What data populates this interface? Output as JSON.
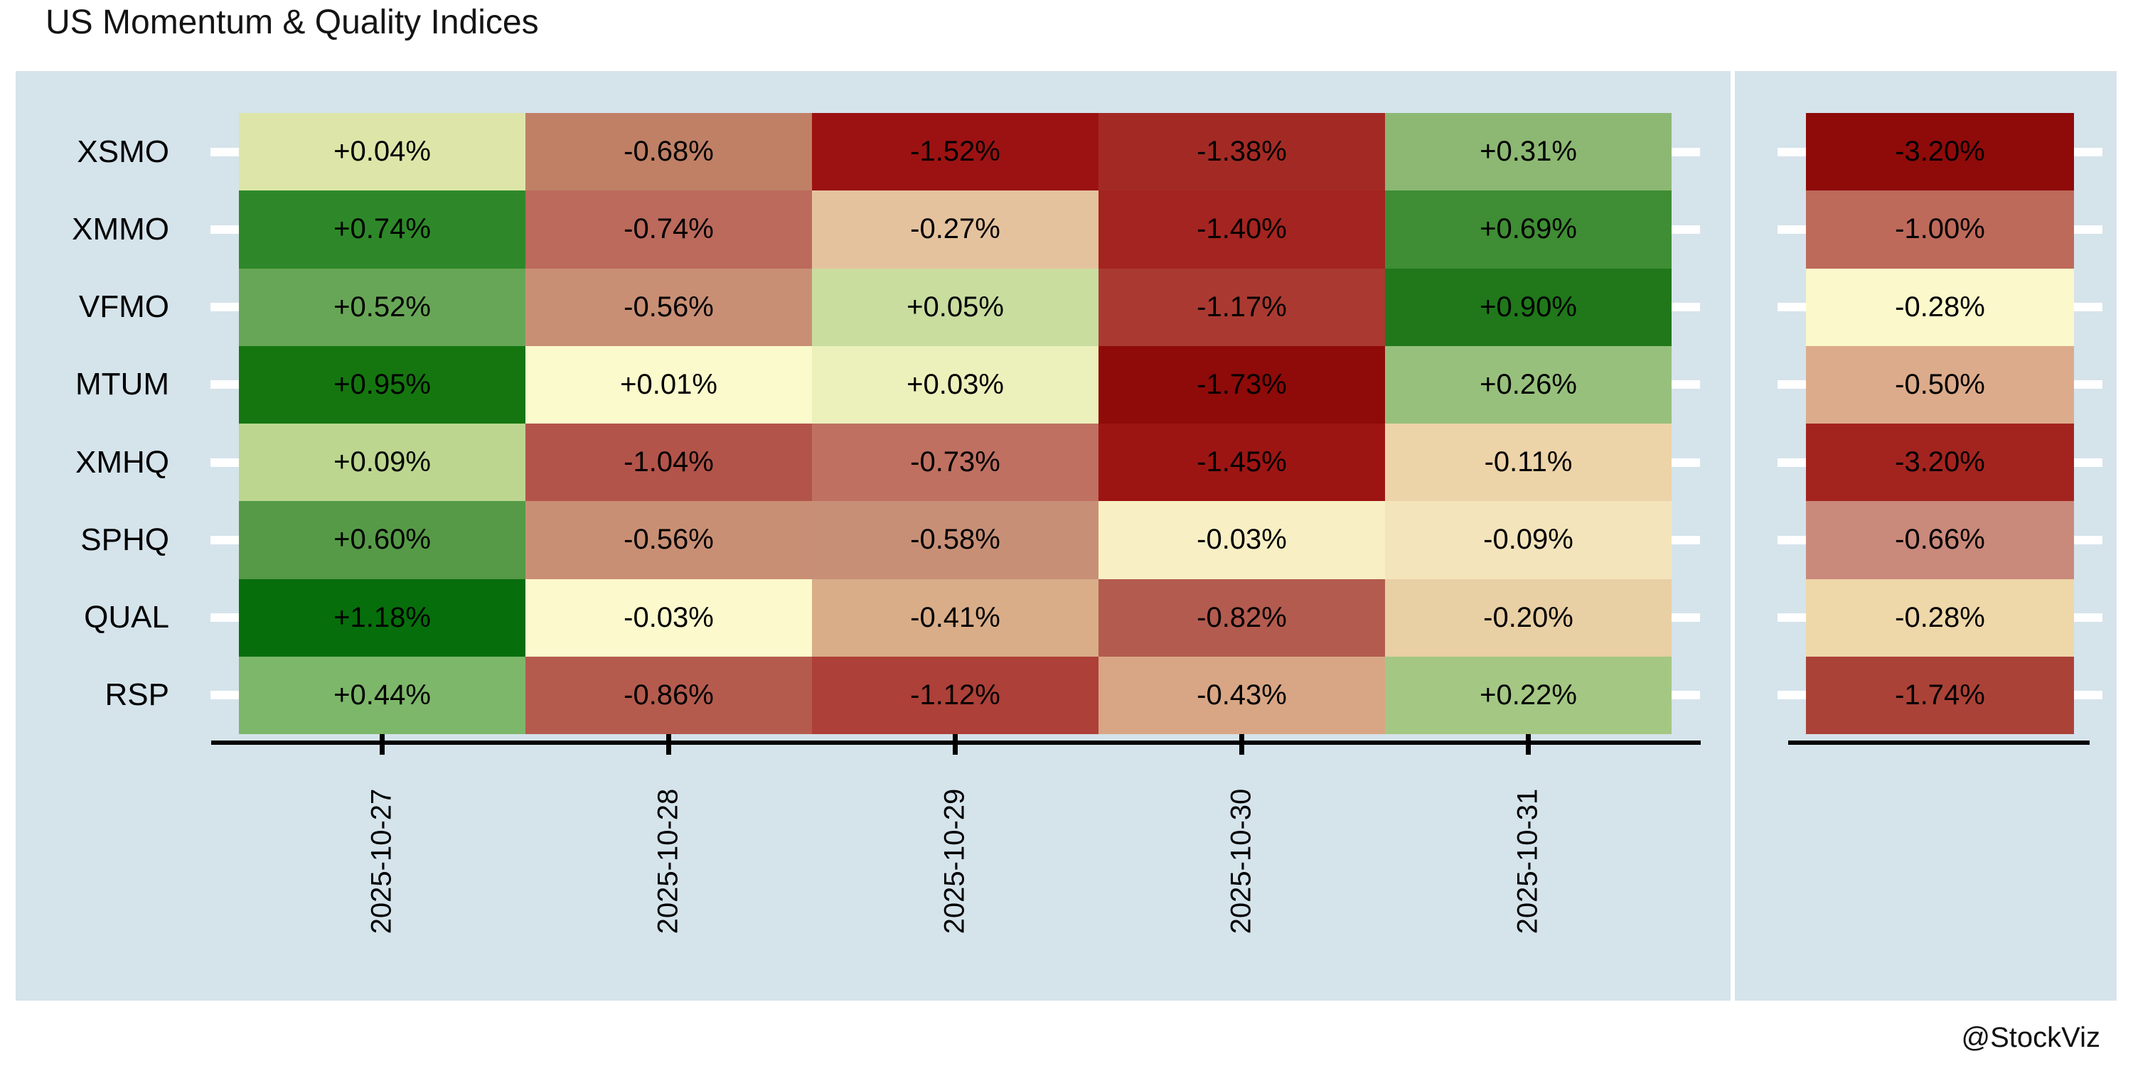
{
  "title": "US Momentum & Quality Indices",
  "attribution": "@StockViz",
  "chart_data": {
    "type": "heatmap",
    "colormap": "RdYlGn",
    "plot_background": "#d5e3eb",
    "rows": [
      "XSMO",
      "XMMO",
      "VFMO",
      "MTUM",
      "XMHQ",
      "SPHQ",
      "QUAL",
      "RSP"
    ],
    "columns": [
      "2025-10-27",
      "2025-10-28",
      "2025-10-29",
      "2025-10-30",
      "2025-10-31"
    ],
    "daily_values_pct": [
      [
        0.04,
        -0.68,
        -1.52,
        -1.38,
        0.31
      ],
      [
        0.74,
        -0.74,
        -0.27,
        -1.4,
        0.69
      ],
      [
        0.52,
        -0.56,
        0.05,
        -1.17,
        0.9
      ],
      [
        0.95,
        0.01,
        0.03,
        -1.73,
        0.26
      ],
      [
        0.09,
        -1.04,
        -0.73,
        -1.45,
        -0.11
      ],
      [
        0.6,
        -0.56,
        -0.58,
        -0.03,
        -0.09
      ],
      [
        1.18,
        -0.03,
        -0.41,
        -0.82,
        -0.2
      ],
      [
        0.44,
        -0.86,
        -1.12,
        -0.43,
        0.22
      ]
    ],
    "daily_labels": [
      [
        "+0.04%",
        "-0.68%",
        "-1.52%",
        "-1.38%",
        "+0.31%"
      ],
      [
        "+0.74%",
        "-0.74%",
        "-0.27%",
        "-1.40%",
        "+0.69%"
      ],
      [
        "+0.52%",
        "-0.56%",
        "+0.05%",
        "-1.17%",
        "+0.90%"
      ],
      [
        "+0.95%",
        "+0.01%",
        "+0.03%",
        "-1.73%",
        "+0.26%"
      ],
      [
        "+0.09%",
        "-1.04%",
        "-0.73%",
        "-1.45%",
        "-0.11%"
      ],
      [
        "+0.60%",
        "-0.56%",
        "-0.58%",
        "-0.03%",
        "-0.09%"
      ],
      [
        "+1.18%",
        "-0.03%",
        "-0.41%",
        "-0.82%",
        "-0.20%"
      ],
      [
        "+0.44%",
        "-0.86%",
        "-1.12%",
        "-0.43%",
        "+0.22%"
      ]
    ],
    "daily_colors": [
      [
        "#dde6a8",
        "#c08066",
        "#9c1212",
        "#a32a24",
        "#8cb873"
      ],
      [
        "#2e8829",
        "#bb6a5c",
        "#e5c29e",
        "#a32420",
        "#3f8d34"
      ],
      [
        "#68a657",
        "#c98f75",
        "#c9dd9f",
        "#aa3a31",
        "#20781b"
      ],
      [
        "#15760f",
        "#fbfacc",
        "#ecf0bb",
        "#8e0b09",
        "#97c07d"
      ],
      [
        "#bcd690",
        "#b3544a",
        "#bf7061",
        "#9c1513",
        "#edd3a8"
      ],
      [
        "#569a47",
        "#c98f75",
        "#c88f77",
        "#f8f0c4",
        "#f4e4bc"
      ],
      [
        "#076e0c",
        "#fcfacd",
        "#d9ad88",
        "#b35b4f",
        "#e9cfa4"
      ],
      [
        "#7db76a",
        "#b45b4e",
        "#ad4038",
        "#d8a685",
        "#a4c784"
      ]
    ],
    "summary_values_pct": [
      -3.2,
      -1.0,
      -0.28,
      -0.5,
      -3.2,
      -0.66,
      -0.28,
      -1.74
    ],
    "summary_labels": [
      "-3.20%",
      "-1.00%",
      "-0.28%",
      "-0.50%",
      "-3.20%",
      "-0.66%",
      "-0.28%",
      "-1.74%"
    ],
    "summary_colors": [
      "#8e0b09",
      "#bd6a5b",
      "#fbf8cb",
      "#dcab8b",
      "#a3241f",
      "#c9897b",
      "#eed7a9",
      "#ab4238"
    ]
  }
}
